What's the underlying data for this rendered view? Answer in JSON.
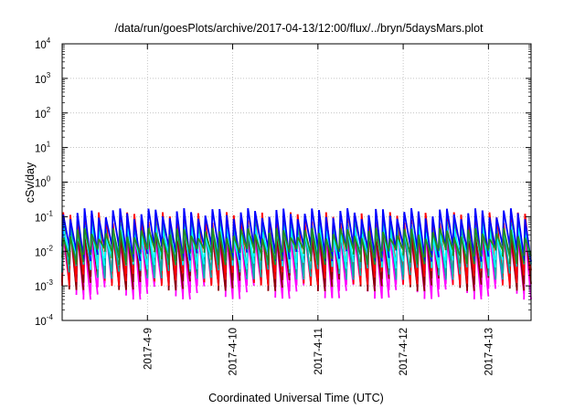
{
  "chart_data": {
    "type": "line",
    "title": "/data/run/goesPlots/archive/2017-04-13/12:00/flux/../bryn/5daysMars.plot",
    "xlabel": "Coordinated Universal Time (UTC)",
    "ylabel": "cSv/day",
    "yscale": "log",
    "ylim": [
      0.0001,
      10000
    ],
    "xlim": [
      "2017-04-08 00:00",
      "2017-04-13 12:00"
    ],
    "grid": true,
    "legend": "none",
    "yticks": [
      {
        "base": "10",
        "exp": "4",
        "value": 10000
      },
      {
        "base": "10",
        "exp": "3",
        "value": 1000
      },
      {
        "base": "10",
        "exp": "2",
        "value": 100
      },
      {
        "base": "10",
        "exp": "1",
        "value": 10
      },
      {
        "base": "10",
        "exp": "0",
        "value": 1
      },
      {
        "base": "10",
        "exp": "-1",
        "value": 0.1
      },
      {
        "base": "10",
        "exp": "-2",
        "value": 0.01
      },
      {
        "base": "10",
        "exp": "-3",
        "value": 0.001
      },
      {
        "base": "10",
        "exp": "-4",
        "value": 0.0001
      }
    ],
    "xticks": [
      "2017-4-9",
      "2017-4-10",
      "2017-4-11",
      "2017-4-12",
      "2017-4-13"
    ],
    "xtick_days": [
      1,
      2,
      3,
      4,
      5
    ],
    "x_span_days": 5.5,
    "cycles_per_day": 12,
    "series": [
      {
        "color": "#ff00ff",
        "peak": 0.03,
        "trough": 0.0008
      },
      {
        "color": "#8b0000",
        "peak": 0.045,
        "trough": 0.0014
      },
      {
        "color": "#ff0000",
        "peak": 0.1,
        "trough": 0.002
      },
      {
        "color": "#00b0b0",
        "peak": 0.06,
        "trough": 0.003
      },
      {
        "color": "#00ffff",
        "peak": 0.04,
        "trough": 0.006
      },
      {
        "color": "#0000ff",
        "peak": 0.13,
        "trough": 0.01
      },
      {
        "color": "#228b22",
        "peak": 0.035,
        "trough": 0.008
      }
    ]
  }
}
